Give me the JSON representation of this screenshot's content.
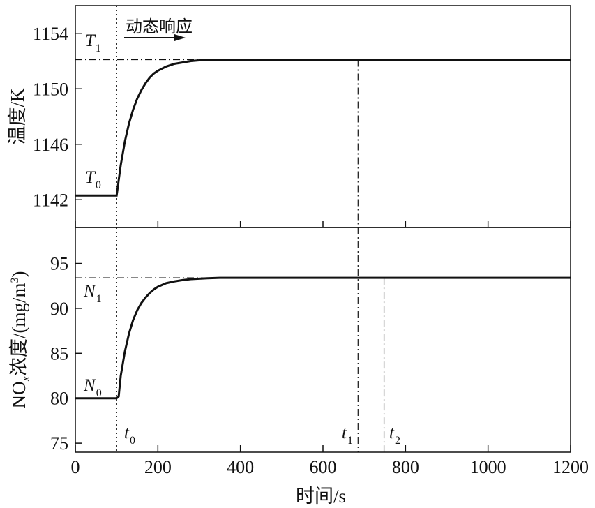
{
  "chart_data": [
    {
      "type": "line",
      "panel": "top",
      "ylabel": "温度/K",
      "xlim": [
        0,
        1200
      ],
      "ylim": [
        1140,
        1156
      ],
      "yticks": [
        1142,
        1146,
        1150,
        1154
      ],
      "xticks": [
        0,
        200,
        400,
        600,
        800,
        1000,
        1200
      ],
      "series": [
        {
          "x": [
            0,
            100,
            110,
            120,
            130,
            140,
            150,
            160,
            170,
            180,
            190,
            200,
            220,
            240,
            260,
            280,
            300,
            320,
            350,
            400,
            450,
            500,
            600,
            700,
            800,
            1000,
            1200
          ],
          "y": [
            1142.3,
            1142.3,
            1144.5,
            1146.2,
            1147.5,
            1148.5,
            1149.3,
            1149.9,
            1150.4,
            1150.8,
            1151.1,
            1151.3,
            1151.6,
            1151.8,
            1151.9,
            1152.0,
            1152.05,
            1152.1,
            1152.1,
            1152.1,
            1152.1,
            1152.1,
            1152.1,
            1152.1,
            1152.1,
            1152.1,
            1152.1
          ]
        }
      ],
      "reference_lines": {
        "T1_level": 1152.1,
        "t0": 100,
        "t1": 685
      },
      "annotations": {
        "T1": {
          "main": "T",
          "sub": "1"
        },
        "T0": {
          "main": "T",
          "sub": "0"
        },
        "dynamic": "动态响应"
      }
    },
    {
      "type": "line",
      "panel": "bottom",
      "ylabel_parts": {
        "no": "NO",
        "x": "x",
        "rest": "浓度/(mg/m",
        "sup": "3",
        "close": ")"
      },
      "xlabel": "时间/s",
      "xlim": [
        0,
        1200
      ],
      "ylim": [
        74,
        99
      ],
      "yticks": [
        75,
        80,
        85,
        90,
        95
      ],
      "xticks": [
        0,
        200,
        400,
        600,
        800,
        1000,
        1200
      ],
      "series": [
        {
          "x": [
            0,
            100,
            105,
            110,
            120,
            130,
            140,
            150,
            160,
            170,
            180,
            190,
            200,
            220,
            240,
            260,
            280,
            300,
            320,
            350,
            400,
            450,
            500,
            600,
            700,
            800,
            1000,
            1200
          ],
          "y": [
            80.0,
            80.0,
            80.2,
            82.5,
            85.2,
            87.2,
            88.7,
            89.8,
            90.6,
            91.2,
            91.7,
            92.1,
            92.4,
            92.8,
            93.0,
            93.15,
            93.25,
            93.3,
            93.35,
            93.4,
            93.4,
            93.4,
            93.4,
            93.4,
            93.4,
            93.4,
            93.4,
            93.4
          ]
        }
      ],
      "reference_lines": {
        "N1_level": 93.4,
        "t0": 100,
        "t1": 685,
        "t2": 748
      },
      "annotations": {
        "N1": {
          "main": "N",
          "sub": "1"
        },
        "N0": {
          "main": "N",
          "sub": "0"
        },
        "t0": {
          "main": "t",
          "sub": "0"
        },
        "t1": {
          "main": "t",
          "sub": "1"
        },
        "t2": {
          "main": "t",
          "sub": "2"
        }
      }
    }
  ]
}
